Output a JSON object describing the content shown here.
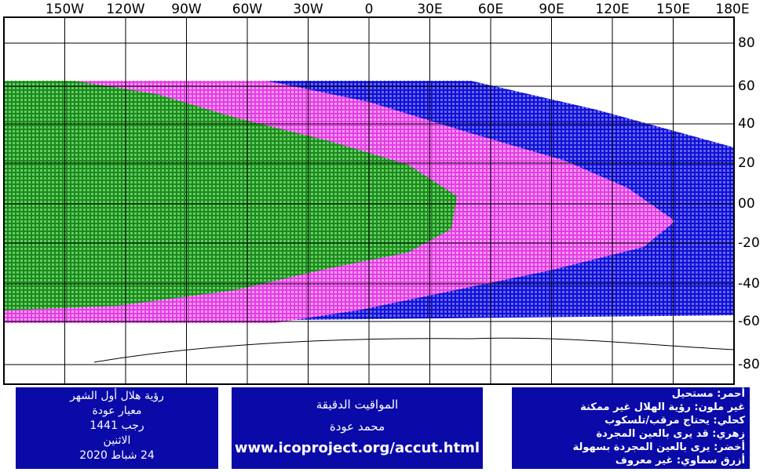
{
  "map": {
    "lon_labels": [
      "150W",
      "120W",
      "90W",
      "60W",
      "30W",
      "0",
      "30E",
      "60E",
      "90E",
      "120E",
      "150E",
      "180E"
    ],
    "lat_labels": [
      "80",
      "60",
      "40",
      "20",
      "00",
      "-20",
      "-40",
      "-60",
      "-80"
    ],
    "left_box": [
      "رؤية هلال أول الشهر",
      "معيار عودة",
      "رجب 1441",
      "الاثنين",
      "24 شباط 2020"
    ],
    "center_box": [
      "المواقيت الدقيقة",
      "محمد عودة",
      "www.icoproject.org/accut.html"
    ],
    "legend_box": [
      "أحمر: مستحيل",
      "غير ملون: رؤية الهلال غير ممكنة",
      "كحلي: يحتاج مرقب/تلسكوب",
      "زهري: قد يرى بالعين المجردة",
      "أخضر: يرى بالعين المجردة بسهولة",
      "أزرق سماوي: غير معروف"
    ]
  }
}
